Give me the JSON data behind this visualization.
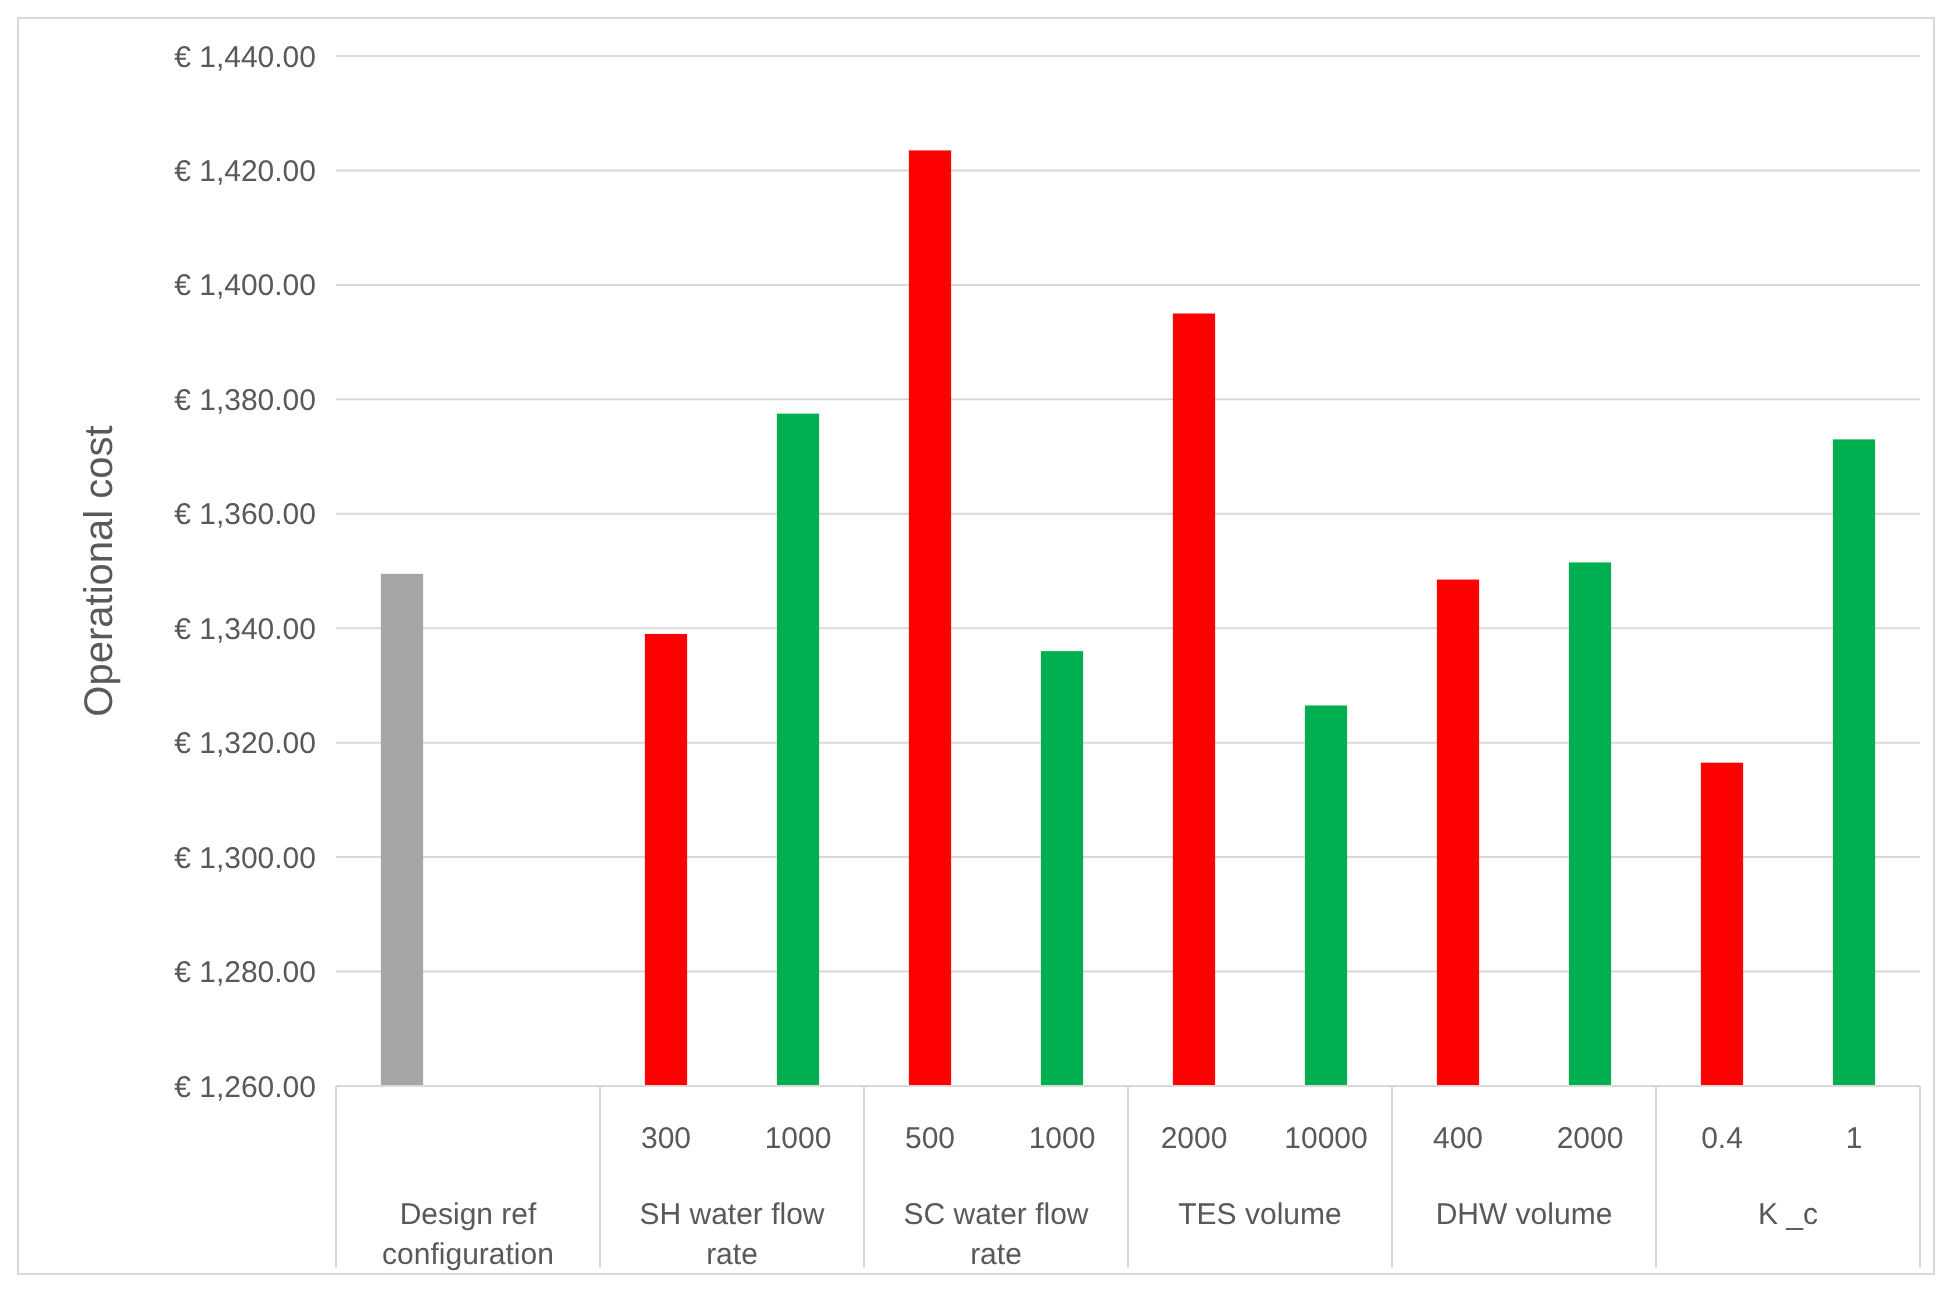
{
  "chart_data": {
    "type": "bar",
    "ylabel": "Operational cost",
    "categories": [
      null,
      null,
      "300",
      "1000",
      "500",
      "1000",
      "2000",
      "10000",
      "400",
      "2000",
      "0.4",
      "1"
    ],
    "annotations": [
      "Design ref configuration",
      "SH water flow rate",
      "SC water flow rate",
      "TES volume",
      "DHW volume",
      "K _c"
    ],
    "values": [
      1349.5,
      null,
      1339,
      1377.5,
      1423.5,
      1336,
      1395,
      1326.5,
      1348.5,
      1351.5,
      1316.5,
      1373
    ],
    "colors": [
      "#a5a5a5",
      null,
      "#ff0000",
      "#00b050",
      "#ff0000",
      "#00b050",
      "#ff0000",
      "#00b050",
      "#ff0000",
      "#00b050",
      "#ff0000",
      "#00b050"
    ],
    "ylim": [
      1260,
      1440
    ],
    "yticks": [
      {
        "value": 1260,
        "label": "€ 1,260.00"
      },
      {
        "value": 1280,
        "label": "€ 1,280.00"
      },
      {
        "value": 1300,
        "label": "€ 1,300.00"
      },
      {
        "value": 1320,
        "label": "€ 1,320.00"
      },
      {
        "value": 1340,
        "label": "€ 1,340.00"
      },
      {
        "value": 1360,
        "label": "€ 1,360.00"
      },
      {
        "value": 1380,
        "label": "€ 1,380.00"
      },
      {
        "value": 1400,
        "label": "€ 1,400.00"
      },
      {
        "value": 1420,
        "label": "€ 1,420.00"
      },
      {
        "value": 1440,
        "label": "€ 1,440.00"
      }
    ],
    "grid": "y"
  }
}
